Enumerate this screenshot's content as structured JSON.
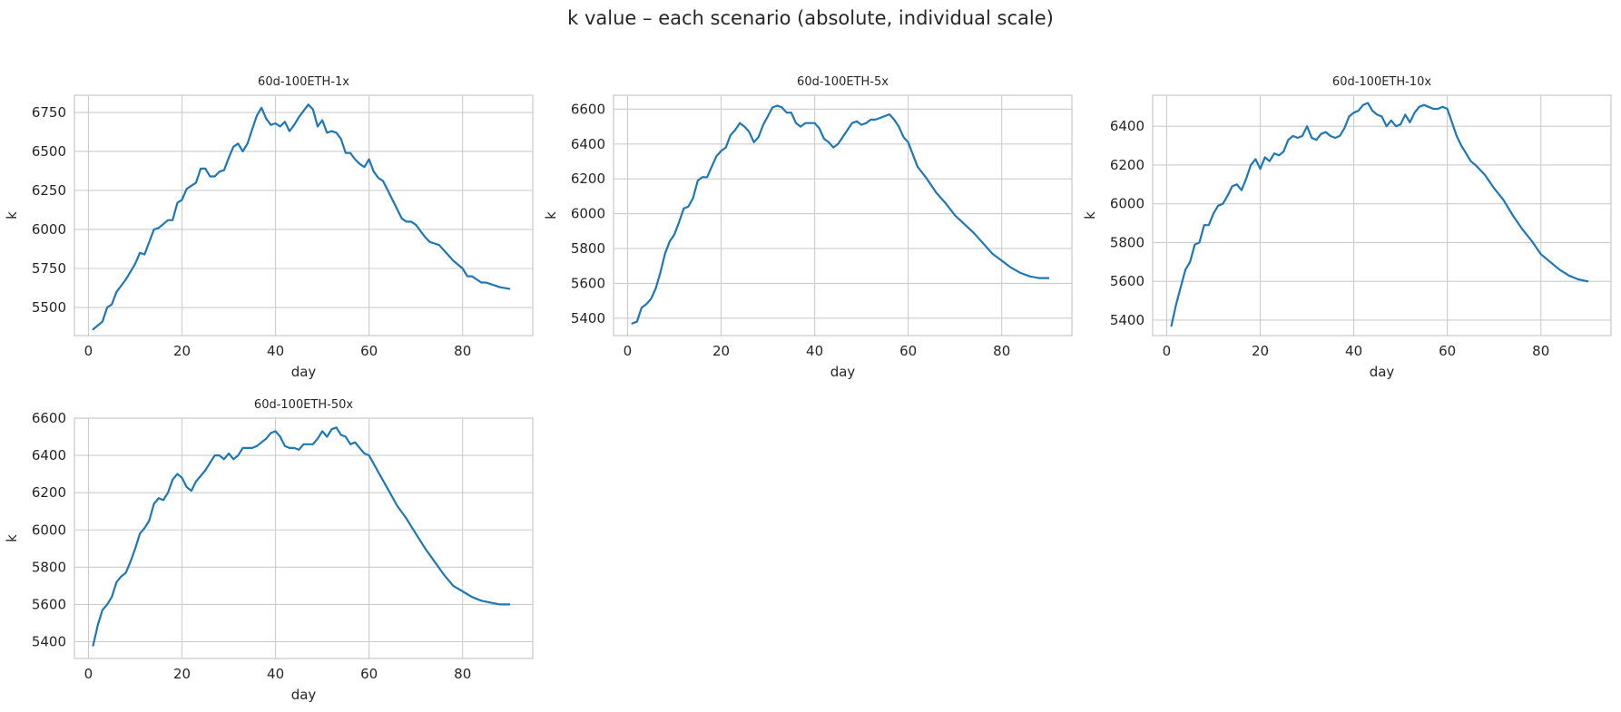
{
  "figure": {
    "title": "k value – each scenario (absolute, individual scale)"
  },
  "colors": {
    "line": "#1f77b4",
    "grid": "#cccccc",
    "frame": "#cccccc",
    "text": "#262626"
  },
  "chart_data": [
    {
      "type": "line",
      "title": "60d-100ETH-1x",
      "xlabel": "day",
      "ylabel": "k",
      "xlim": [
        -3,
        95
      ],
      "ylim": [
        5320,
        6860
      ],
      "xticks": [
        0,
        20,
        40,
        60,
        80
      ],
      "yticks": [
        5500,
        5750,
        6000,
        6250,
        6500,
        6750
      ],
      "grid": true,
      "series": [
        {
          "x": [
            1,
            3,
            4,
            5,
            6,
            8,
            10,
            11,
            12,
            14,
            15,
            17,
            18,
            19,
            20,
            21,
            23,
            24,
            25,
            26,
            27,
            28,
            29,
            30,
            31,
            32,
            33,
            34,
            35,
            36,
            37,
            38,
            39,
            40,
            41,
            42,
            43,
            44,
            45,
            46,
            47,
            48,
            49,
            50,
            51,
            52,
            53,
            54,
            55,
            56,
            57,
            58,
            59,
            60,
            61,
            62,
            63,
            64,
            66,
            67,
            68,
            69,
            70,
            71,
            72,
            73,
            74,
            75,
            78,
            80,
            81,
            82,
            84,
            85,
            86,
            88,
            90
          ],
          "y": [
            5360,
            5410,
            5500,
            5520,
            5600,
            5680,
            5780,
            5850,
            5840,
            6000,
            6010,
            6060,
            6060,
            6170,
            6190,
            6260,
            6300,
            6390,
            6390,
            6340,
            6340,
            6370,
            6380,
            6460,
            6530,
            6550,
            6500,
            6550,
            6640,
            6730,
            6780,
            6710,
            6670,
            6680,
            6660,
            6690,
            6630,
            6670,
            6720,
            6760,
            6800,
            6770,
            6660,
            6700,
            6620,
            6630,
            6620,
            6580,
            6490,
            6490,
            6450,
            6420,
            6400,
            6450,
            6370,
            6330,
            6310,
            6250,
            6130,
            6070,
            6050,
            6050,
            6030,
            5990,
            5950,
            5920,
            5910,
            5900,
            5800,
            5750,
            5700,
            5700,
            5660,
            5660,
            5650,
            5630,
            5620
          ]
        }
      ]
    },
    {
      "type": "line",
      "title": "60d-100ETH-5x",
      "xlabel": "day",
      "ylabel": "k",
      "xlim": [
        -3,
        95
      ],
      "ylim": [
        5300,
        6680
      ],
      "xticks": [
        0,
        20,
        40,
        60,
        80
      ],
      "yticks": [
        5400,
        5600,
        5800,
        6000,
        6200,
        6400,
        6600
      ],
      "grid": true,
      "series": [
        {
          "x": [
            1,
            2,
            3,
            4,
            5,
            6,
            7,
            8,
            9,
            10,
            11,
            12,
            13,
            14,
            15,
            16,
            17,
            18,
            19,
            20,
            21,
            22,
            23,
            24,
            25,
            26,
            27,
            28,
            29,
            30,
            31,
            32,
            33,
            34,
            35,
            36,
            37,
            38,
            39,
            40,
            41,
            42,
            43,
            44,
            45,
            46,
            47,
            48,
            49,
            50,
            51,
            52,
            53,
            54,
            55,
            56,
            57,
            58,
            59,
            60,
            62,
            64,
            66,
            68,
            70,
            72,
            74,
            76,
            78,
            80,
            82,
            84,
            86,
            88,
            90
          ],
          "y": [
            5370,
            5380,
            5460,
            5480,
            5510,
            5570,
            5660,
            5770,
            5840,
            5880,
            5950,
            6030,
            6040,
            6090,
            6190,
            6210,
            6210,
            6270,
            6330,
            6360,
            6380,
            6450,
            6480,
            6520,
            6500,
            6470,
            6410,
            6440,
            6510,
            6560,
            6610,
            6620,
            6610,
            6580,
            6580,
            6520,
            6500,
            6520,
            6520,
            6520,
            6490,
            6430,
            6410,
            6380,
            6400,
            6440,
            6480,
            6520,
            6530,
            6510,
            6520,
            6540,
            6540,
            6550,
            6560,
            6570,
            6540,
            6500,
            6440,
            6410,
            6270,
            6200,
            6120,
            6060,
            5990,
            5940,
            5890,
            5830,
            5770,
            5730,
            5690,
            5660,
            5640,
            5630,
            5630
          ]
        }
      ]
    },
    {
      "type": "line",
      "title": "60d-100ETH-10x",
      "xlabel": "day",
      "ylabel": "k",
      "xlim": [
        -3,
        95
      ],
      "ylim": [
        5320,
        6560
      ],
      "xticks": [
        0,
        20,
        40,
        60,
        80
      ],
      "yticks": [
        5400,
        5600,
        5800,
        6000,
        6200,
        6400
      ],
      "grid": true,
      "series": [
        {
          "x": [
            1,
            2,
            3,
            4,
            5,
            6,
            7,
            8,
            9,
            10,
            11,
            12,
            13,
            14,
            15,
            16,
            17,
            18,
            19,
            20,
            21,
            22,
            23,
            24,
            25,
            26,
            27,
            28,
            29,
            30,
            31,
            32,
            33,
            34,
            35,
            36,
            37,
            38,
            39,
            40,
            41,
            42,
            43,
            44,
            45,
            46,
            47,
            48,
            49,
            50,
            51,
            52,
            53,
            54,
            55,
            56,
            57,
            58,
            59,
            60,
            61,
            62,
            63,
            64,
            65,
            66,
            68,
            70,
            72,
            74,
            76,
            78,
            80,
            82,
            84,
            86,
            88,
            90
          ],
          "y": [
            5370,
            5480,
            5570,
            5660,
            5700,
            5790,
            5800,
            5890,
            5890,
            5950,
            5990,
            6000,
            6040,
            6090,
            6100,
            6070,
            6130,
            6200,
            6230,
            6180,
            6240,
            6220,
            6260,
            6250,
            6270,
            6330,
            6350,
            6340,
            6350,
            6400,
            6340,
            6330,
            6360,
            6370,
            6350,
            6340,
            6350,
            6390,
            6450,
            6470,
            6480,
            6510,
            6520,
            6480,
            6460,
            6450,
            6400,
            6430,
            6400,
            6410,
            6460,
            6420,
            6470,
            6500,
            6510,
            6500,
            6490,
            6490,
            6500,
            6490,
            6420,
            6350,
            6300,
            6260,
            6220,
            6200,
            6150,
            6080,
            6020,
            5940,
            5870,
            5810,
            5740,
            5700,
            5660,
            5630,
            5610,
            5600
          ]
        }
      ]
    },
    {
      "type": "line",
      "title": "60d-100ETH-50x",
      "xlabel": "day",
      "ylabel": "k",
      "xlim": [
        -3,
        95
      ],
      "ylim": [
        5310,
        6600
      ],
      "xticks": [
        0,
        20,
        40,
        60,
        80
      ],
      "yticks": [
        5400,
        5600,
        5800,
        6000,
        6200,
        6400,
        6600
      ],
      "grid": true,
      "series": [
        {
          "x": [
            1,
            2,
            3,
            4,
            5,
            6,
            7,
            8,
            9,
            10,
            11,
            12,
            13,
            14,
            15,
            16,
            17,
            18,
            19,
            20,
            21,
            22,
            23,
            24,
            25,
            26,
            27,
            28,
            29,
            30,
            31,
            32,
            33,
            34,
            35,
            36,
            37,
            38,
            39,
            40,
            41,
            42,
            43,
            44,
            45,
            46,
            47,
            48,
            49,
            50,
            51,
            52,
            53,
            54,
            55,
            56,
            57,
            58,
            59,
            60,
            62,
            64,
            66,
            68,
            70,
            72,
            74,
            76,
            78,
            80,
            82,
            84,
            86,
            88,
            90
          ],
          "y": [
            5380,
            5490,
            5570,
            5600,
            5640,
            5720,
            5750,
            5770,
            5830,
            5900,
            5980,
            6010,
            6050,
            6140,
            6170,
            6160,
            6200,
            6270,
            6300,
            6280,
            6230,
            6210,
            6260,
            6290,
            6320,
            6360,
            6400,
            6400,
            6380,
            6410,
            6380,
            6400,
            6440,
            6440,
            6440,
            6450,
            6470,
            6490,
            6520,
            6530,
            6500,
            6450,
            6440,
            6440,
            6430,
            6460,
            6460,
            6460,
            6490,
            6530,
            6500,
            6540,
            6550,
            6510,
            6500,
            6460,
            6470,
            6440,
            6410,
            6400,
            6310,
            6220,
            6130,
            6060,
            5980,
            5900,
            5830,
            5760,
            5700,
            5670,
            5640,
            5620,
            5610,
            5600,
            5600
          ]
        }
      ]
    }
  ]
}
